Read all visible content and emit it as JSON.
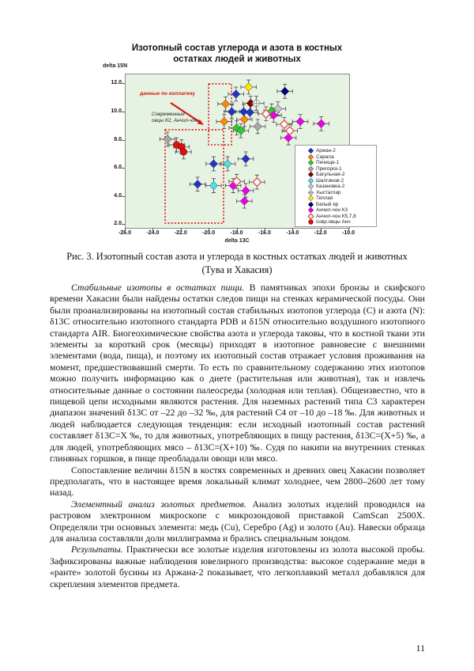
{
  "page": {
    "number": "11"
  },
  "figure": {
    "title_line1": "Изотопный состав углерода и азота в костных",
    "title_line2": "остатках людей и животных",
    "y_axis_label": "delta 15N",
    "x_axis_label": "delta 13C",
    "annotations": {
      "collagen_label": "данные по коллагену",
      "sheep_label_line1": "Современные",
      "sheep_label_line2": "овцы К2, Анчил-чон"
    },
    "caption_line1": "Рис. 3. Изотопный состав азота и углерода в костных остатках людей и животных",
    "caption_line2": "(Тува и Хакасия)"
  },
  "chart_data": {
    "type": "scatter",
    "title": "Изотопный состав углерода и азота в костных остатках людей и животных",
    "xlabel": "delta 13C",
    "ylabel": "delta 15N",
    "xlim": [
      -26,
      -10
    ],
    "ylim": [
      1.8,
      12.7
    ],
    "x_ticks": [
      -26.0,
      -24.0,
      -22.0,
      -20.0,
      -18.0,
      -16.0,
      -14.0,
      -12.0,
      -10.0
    ],
    "y_ticks": [
      2.0,
      4.0,
      6.0,
      8.0,
      10.0,
      12.0
    ],
    "grid": false,
    "legend_position": "lower-right",
    "plot_bg": "#e7f3e2",
    "annotation_color": "#d81414",
    "error_bars": {
      "x": 0.55,
      "y": 0.5
    },
    "series": [
      {
        "name": "Аржан-2",
        "color": "#2233cc",
        "marker": "diamond",
        "points": [
          [
            -18.1,
            11.3
          ],
          [
            -18.4,
            10.05
          ],
          [
            -17.55,
            10.05
          ],
          [
            -17.1,
            10.0
          ],
          [
            -17.4,
            6.7
          ],
          [
            -19.7,
            6.35
          ],
          [
            -20.85,
            4.9
          ]
        ]
      },
      {
        "name": "Сарала",
        "color": "#ff8800",
        "marker": "diamond",
        "points": [
          [
            -18.85,
            10.6
          ],
          [
            -18.95,
            9.35
          ],
          [
            -17.5,
            9.5
          ]
        ]
      },
      {
        "name": "Печище-1",
        "color": "#2ecc2e",
        "marker": "diamond",
        "points": [
          [
            -18.05,
            8.9
          ],
          [
            -17.75,
            8.7
          ],
          [
            -15.55,
            10.1
          ]
        ]
      },
      {
        "name": "Пригорск-1",
        "color": "#a8a8a8",
        "marker": "diamond",
        "points": [
          [
            -23.0,
            8.1
          ],
          [
            -16.55,
            9.0
          ]
        ]
      },
      {
        "name": "Багульная-2",
        "color": "#8b0000",
        "marker": "diamond",
        "points": [
          [
            -17.05,
            10.65
          ]
        ]
      },
      {
        "name": "Шалгинов-2",
        "color": "#4edfe8",
        "marker": "diamond",
        "points": [
          [
            -18.7,
            6.35
          ],
          [
            -19.7,
            4.8
          ]
        ]
      },
      {
        "name": "Казановка-2",
        "color": "#c6c6c6",
        "marker": "diamond",
        "points": [
          [
            -15.1,
            10.25
          ]
        ]
      },
      {
        "name": "Хыстаглар",
        "color": "#8f8f8f",
        "marker": "open-cross",
        "points": [
          [
            -16.65,
            10.65
          ]
        ]
      },
      {
        "name": "Теплая",
        "color": "#ffe800",
        "marker": "diamond",
        "points": [
          [
            -17.2,
            11.8
          ]
        ]
      },
      {
        "name": "Белый яр",
        "color": "#000080",
        "marker": "diamond",
        "points": [
          [
            -14.6,
            11.5
          ]
        ]
      },
      {
        "name": "Анчил-чон К3",
        "color": "#ee00ee",
        "marker": "diamond",
        "points": [
          [
            -15.4,
            9.8
          ],
          [
            -13.5,
            9.35
          ],
          [
            -12.0,
            9.2
          ],
          [
            -14.35,
            8.2
          ],
          [
            -18.3,
            4.8
          ],
          [
            -17.4,
            4.45
          ],
          [
            -17.5,
            3.7
          ]
        ]
      },
      {
        "name": "Анчил-чон К5,7,8",
        "color": "#dd5555",
        "marker": "open-diamond",
        "points": [
          [
            -15.95,
            9.9
          ],
          [
            -14.65,
            9.15
          ],
          [
            -14.25,
            8.7
          ],
          [
            -18.05,
            5.1
          ],
          [
            -16.6,
            5.05
          ]
        ]
      },
      {
        "name": "совр.овцы Анч",
        "color": "#e01010",
        "marker": "circle",
        "points": [
          [
            -22.35,
            7.7
          ],
          [
            -22.0,
            7.55
          ],
          [
            -21.85,
            7.2
          ]
        ]
      }
    ],
    "boxes": [
      {
        "label": "данные по коллагену",
        "x0": -20.06,
        "x1": -18.42,
        "y0": 7.7,
        "y1": 12.03
      },
      {
        "label": "Современные овцы К2, Анчил-чон",
        "x0": -23.17,
        "x1": -18.99,
        "y0": 2.14,
        "y1": 8.77
      }
    ]
  },
  "text": {
    "paragraphs": [
      {
        "lead": "Стабильные изотопы в остатках пищи.",
        "body": " В памятниках эпохи бронзы и скифского времени Хакасии были найдены остатки следов пищи на стенках керамической посуды. Они были проанализированы на изотопный состав стабильных изотопов углерода (C) и азота (N): δ13C относительно изотопного стандарта PDB и δ15N относительно воздушного изотопного стандарта AIR. Биогеохимические свойства азота и углерода таковы, что в костной ткани эти элементы за короткий срок (месяцы) приходят в изотопное равновесие с внешними элементами (вода, пища), и поэтому их изотопный состав отражает условия проживания на момент, предшествовавший смерти. То есть по сравнительному содержанию этих изотопов можно получить информацию как о диете (растительная или животная), так и извлечь относительные данные о состоянии палеосреды (холодная или теплая). Общеизвестно, что в пищевой цепи исходными являются растения. Для наземных растений типа C3 характерен диапазон значений δ13C от –22 до –32 ‰, для растений C4 от –10 до –18 ‰. Для животных и людей наблюдается следующая тенденция: если исходный изотопный состав растений составляет δ13C=X ‰, то для животных, употребляющих в пищу растения, δ13C=(X+5) ‰, а для людей, употребляющих мясо – δ13C=(X+10) ‰. Судя по накипи на внутренних стенках глиняных горшков, в пище преобладали овощи или мясо."
      },
      {
        "lead": "",
        "body": "Сопоставление величин δ15N в костях современных и древних овец Хакасии позволяет предполагать, что в настоящее время локальный климат холоднее, чем 2800–2600 лет тому назад."
      },
      {
        "lead": "Элементный анализ золотых предметов.",
        "body": " Анализ золотых изделий проводился на растровом электронном микроскопе с микрозондовой приставкой CamScan 2500X. Определяли три основных элемента: медь (Cu), Серебро (Ag) и золото (Au). Навески образца для анализа составляли доли миллиграмма и брались специальным зондом."
      },
      {
        "lead": "Результаты.",
        "body": " Практически все золотые изделия изготовлены из золота высокой пробы. Зафиксированы важные наблюдения ювелирного производства: высокое содержание меди в «ранте» золотой бусины из Аржана-2 показывает, что легкоплавкий металл добавлялся для скрепления элементов предмета."
      }
    ]
  }
}
